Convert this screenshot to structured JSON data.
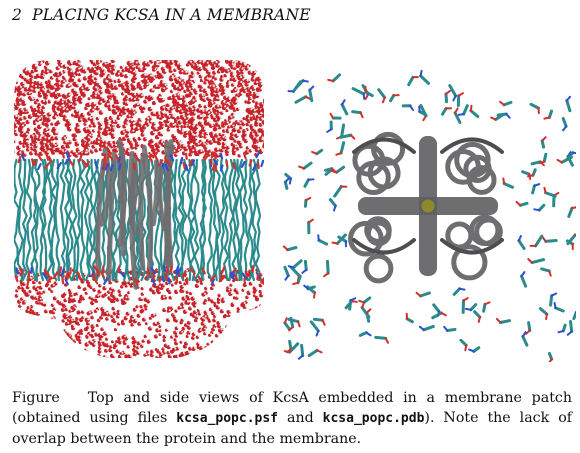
{
  "header": {
    "page_number": "2",
    "section_title": "PLACING KCSA IN A MEMBRANE"
  },
  "figure": {
    "colors": {
      "water_oxygen": "#c8232a",
      "water_hydrogen": "#e8e4e4",
      "lipid_tail": "#2a8a8c",
      "lipid_head_nitrogen": "#2a4fd0",
      "lipid_head_oxygen": "#d2302a",
      "protein": "#6e6e70",
      "ion": "#8c8a2c"
    },
    "panels": [
      "side-view",
      "top-view"
    ]
  },
  "caption": {
    "label": "Figure",
    "text_1": "Top and side views of KcsA embedded in a membrane patch (obtained using files ",
    "file_1": "kcsa_popc.psf",
    "text_2": " and ",
    "file_2": "kcsa_popc.pdb",
    "text_3": "). Note the lack of overlap between the protein and the membrane."
  }
}
